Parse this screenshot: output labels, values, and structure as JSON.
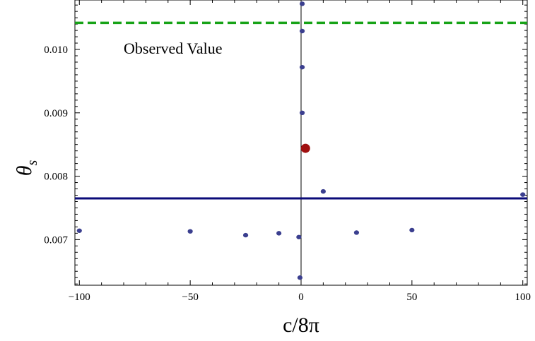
{
  "chart_data": {
    "type": "scatter",
    "xlabel": "c/8π",
    "ylabel_main": "θ",
    "ylabel_sub": "s",
    "xlim": [
      -102,
      102
    ],
    "ylim": [
      0.00628,
      0.01078
    ],
    "x_ticks": [
      -100,
      -50,
      0,
      50,
      100
    ],
    "x_tick_labels": [
      "−100",
      "−50",
      "0",
      "50",
      "100"
    ],
    "y_ticks": [
      0.007,
      0.008,
      0.009,
      0.01
    ],
    "y_tick_labels": [
      "0.007",
      "0.008",
      "0.009",
      "0.010"
    ],
    "annotation": "Observed Value",
    "points": [
      {
        "x": -100,
        "y": 0.00714
      },
      {
        "x": -50,
        "y": 0.00713
      },
      {
        "x": -25,
        "y": 0.00707
      },
      {
        "x": -10,
        "y": 0.0071
      },
      {
        "x": -1,
        "y": 0.00704
      },
      {
        "x": -0.5,
        "y": 0.0064
      },
      {
        "x": 0.5,
        "y": 0.01072
      },
      {
        "x": 0.5,
        "y": 0.01029
      },
      {
        "x": 0.5,
        "y": 0.00972
      },
      {
        "x": 0.5,
        "y": 0.009
      },
      {
        "x": 10,
        "y": 0.00776
      },
      {
        "x": 25,
        "y": 0.00711
      },
      {
        "x": 50,
        "y": 0.00715
      },
      {
        "x": 100,
        "y": 0.00771
      }
    ],
    "highlight_point": {
      "x": 2,
      "y": 0.00844
    },
    "observed_value_y": 0.01042,
    "reference_line_y": 0.00765,
    "colors": {
      "points": "#3b3f8f",
      "highlight": "#a01010",
      "observed_line": "#17a317",
      "reference_line": "#0a0a78",
      "frame": "#000000"
    }
  }
}
